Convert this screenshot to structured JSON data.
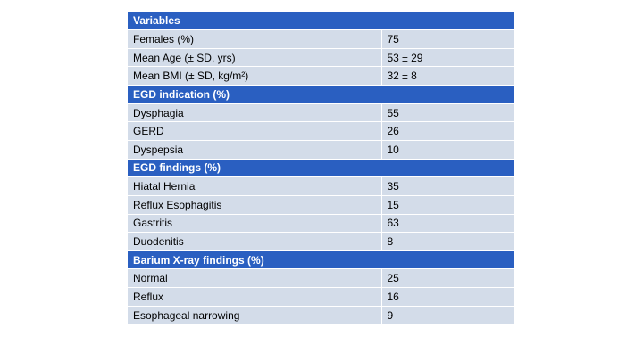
{
  "sections": [
    {
      "heading": "Variables",
      "rows": [
        {
          "label": "Females (%)",
          "value": "75"
        },
        {
          "label": "Mean Age (± SD, yrs)",
          "value": "53 ± 29"
        },
        {
          "label": "Mean BMI (± SD, kg/m²)",
          "value": "32 ± 8"
        }
      ]
    },
    {
      "heading": "EGD indication (%)",
      "rows": [
        {
          "label": "Dysphagia",
          "value": "55"
        },
        {
          "label": "GERD",
          "value": "26"
        },
        {
          "label": "Dyspepsia",
          "value": "10"
        }
      ]
    },
    {
      "heading": "EGD findings (%)",
      "rows": [
        {
          "label": "Hiatal Hernia",
          "value": "35"
        },
        {
          "label": "Reflux Esophagitis",
          "value": "15"
        },
        {
          "label": "Gastritis",
          "value": "63"
        },
        {
          "label": "Duodenitis",
          "value": "8"
        }
      ]
    },
    {
      "heading": "Barium X-ray findings (%)",
      "rows": [
        {
          "label": "Normal",
          "value": "25"
        },
        {
          "label": "Reflux",
          "value": "16"
        },
        {
          "label": "Esophageal narrowing",
          "value": "9"
        }
      ]
    }
  ],
  "colors": {
    "header_bg": "#2a5fc1",
    "row_bg": "#d3dce9",
    "separator": "#ffffff"
  }
}
